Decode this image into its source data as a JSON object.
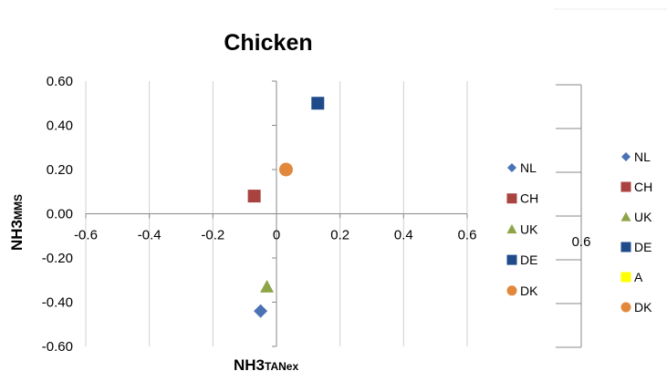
{
  "chart_data": {
    "type": "scatter",
    "title": "Chicken",
    "xlabel": {
      "main": "NH3",
      "sub": "TANex"
    },
    "ylabel": {
      "main": "NH3",
      "sub": "MMS"
    },
    "xlim": [
      -0.6,
      0.6
    ],
    "ylim": [
      -0.6,
      0.6
    ],
    "x_ticks": [
      "-0.6",
      "-0.4",
      "-0.2",
      "0",
      "0.2",
      "0.4",
      "0.6"
    ],
    "y_ticks": [
      "0.60",
      "0.40",
      "0.20",
      "0.00",
      "-0.20",
      "-0.40",
      "-0.60"
    ],
    "grid": "vertical",
    "legend_position": "right",
    "series": [
      {
        "name": "NL",
        "marker": "diamond",
        "color": "#4a72b5",
        "points": [
          [
            -0.05,
            -0.44
          ]
        ]
      },
      {
        "name": "CH",
        "marker": "square",
        "color": "#a84340",
        "points": [
          [
            -0.07,
            0.08
          ]
        ]
      },
      {
        "name": "UK",
        "marker": "triangle",
        "color": "#8ea547",
        "points": [
          [
            -0.03,
            -0.33
          ]
        ]
      },
      {
        "name": "DE",
        "marker": "square",
        "color": "#1f4b8a",
        "points": [
          [
            0.13,
            0.5
          ]
        ]
      },
      {
        "name": "DK",
        "marker": "circle",
        "color": "#e2883d",
        "points": [
          [
            0.03,
            0.2
          ]
        ]
      }
    ]
  },
  "secondary_axis": {
    "tick_label": "0.6"
  },
  "secondary_legend": [
    {
      "name": "NL",
      "marker": "diamond",
      "color": "#4a72b5"
    },
    {
      "name": "CH",
      "marker": "square",
      "color": "#a84340"
    },
    {
      "name": "UK",
      "marker": "triangle",
      "color": "#8ea547"
    },
    {
      "name": "DE",
      "marker": "square",
      "color": "#1f4b8a"
    },
    {
      "name": "A",
      "marker": "square",
      "color": "#ffff00"
    },
    {
      "name": "DK",
      "marker": "circle",
      "color": "#e2883d"
    }
  ]
}
